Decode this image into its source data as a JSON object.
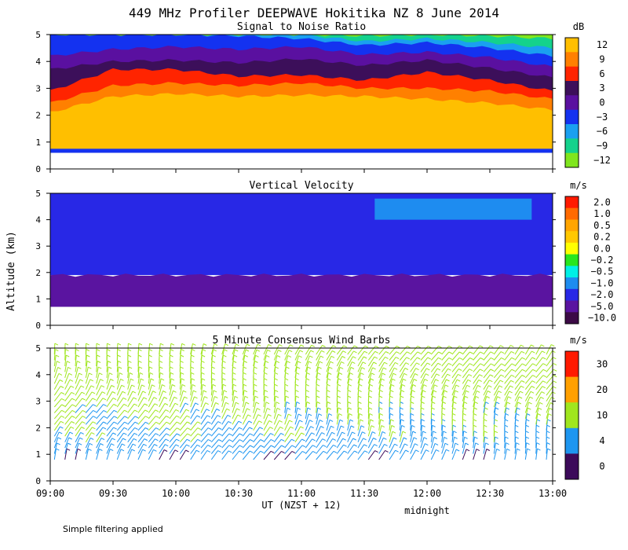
{
  "figure": {
    "title": "449 MHz Profiler DEEPWAVE Hokitika NZ  8 June 2014",
    "ylabel": "Altitude (km)",
    "xlabel": "UT  (NZST + 12)",
    "midnight_label": "midnight",
    "footnote": "Simple filtering applied",
    "x_ticks": [
      "09:00",
      "09:30",
      "10:00",
      "10:30",
      "11:00",
      "11:30",
      "12:00",
      "12:30",
      "13:00"
    ]
  },
  "chart_data": [
    {
      "type": "heatmap",
      "title": "Signal to Noise Ratio",
      "colorbar_unit": "dB",
      "x_range": [
        "09:00",
        "13:00"
      ],
      "ylim": [
        0,
        5
      ],
      "y_ticks": [
        0,
        1,
        2,
        3,
        4,
        5
      ],
      "color_levels": [
        {
          "label": "12",
          "color": "#FFBF00"
        },
        {
          "label": "9",
          "color": "#FF8000"
        },
        {
          "label": "6",
          "color": "#FF2400"
        },
        {
          "label": "3",
          "color": "#3C0F5A"
        },
        {
          "label": "0",
          "color": "#5A10A0"
        },
        {
          "label": "−3",
          "color": "#1432F0"
        },
        {
          "label": "−6",
          "color": "#1AA0F0"
        },
        {
          "label": "−9",
          "color": "#14D28C"
        },
        {
          "label": "−12",
          "color": "#80E61E"
        }
      ],
      "layer_tops_km": {
        "x": [
          "09:00",
          "09:30",
          "10:00",
          "10:30",
          "11:00",
          "11:30",
          "12:00",
          "12:30",
          "13:00"
        ],
        "12": [
          2.1,
          2.7,
          2.8,
          2.7,
          2.75,
          2.7,
          2.6,
          2.45,
          2.2
        ],
        "9": [
          2.45,
          3.1,
          3.2,
          3.1,
          3.2,
          3.0,
          3.0,
          2.9,
          2.6
        ],
        "6": [
          2.9,
          3.7,
          3.7,
          3.45,
          3.5,
          3.3,
          3.6,
          3.3,
          2.9
        ],
        "3": [
          3.7,
          4.0,
          4.05,
          3.95,
          4.1,
          3.85,
          4.05,
          3.75,
          3.4
        ],
        "0": [
          4.2,
          4.45,
          4.55,
          4.45,
          4.55,
          4.25,
          4.35,
          4.15,
          3.8
        ],
        "-3": [
          5.0,
          5.0,
          5.0,
          4.95,
          4.85,
          4.6,
          4.7,
          4.5,
          4.2
        ],
        "-6": [
          5.0,
          5.0,
          5.0,
          5.0,
          5.0,
          4.75,
          4.85,
          4.7,
          4.5
        ],
        "-9": [
          5.0,
          5.0,
          5.0,
          5.0,
          5.0,
          4.95,
          5.0,
          4.95,
          4.85
        ]
      },
      "bottom_km": 0.6
    },
    {
      "type": "heatmap",
      "title": "Vertical Velocity",
      "colorbar_unit": "m/s",
      "x_range": [
        "09:00",
        "13:00"
      ],
      "ylim": [
        0,
        5
      ],
      "y_ticks": [
        0,
        1,
        2,
        3,
        4,
        5
      ],
      "color_levels": [
        {
          "label": "2.0",
          "color": "#FF1A00"
        },
        {
          "label": "1.0",
          "color": "#FF6A00"
        },
        {
          "label": "0.5",
          "color": "#FFA500"
        },
        {
          "label": "0.2",
          "color": "#FFC800"
        },
        {
          "label": "0.0",
          "color": "#FFFF00"
        },
        {
          "label": "−0.2",
          "color": "#28E61E"
        },
        {
          "label": "−0.5",
          "color": "#00F0E6"
        },
        {
          "label": "−1.0",
          "color": "#1E8CF0"
        },
        {
          "label": "−2.0",
          "color": "#2828E6"
        },
        {
          "label": "−5.0",
          "color": "#5A14A0"
        },
        {
          "label": "−10.0",
          "color": "#3C0A46"
        }
      ],
      "regions": [
        {
          "value": "−5.0",
          "from_km": 0.7,
          "to_km": 1.9,
          "x": [
            "09:00",
            "13:00"
          ]
        },
        {
          "value": "−2.0",
          "from_km": 1.9,
          "to_km": 5.0,
          "x": [
            "09:00",
            "13:00"
          ]
        },
        {
          "value": "−1.0",
          "from_km": 4.0,
          "to_km": 4.8,
          "x": [
            "11:35",
            "12:50"
          ]
        }
      ]
    },
    {
      "type": "scatter",
      "title": "5 Minute Consensus Wind Barbs",
      "colorbar_unit": "m/s",
      "x_range": [
        "09:00",
        "13:00"
      ],
      "ylim": [
        0,
        5
      ],
      "y_ticks": [
        0,
        1,
        2,
        3,
        4,
        5
      ],
      "color_levels": [
        {
          "label": "30",
          "color": "#FF1A00"
        },
        {
          "label": "20",
          "color": "#FFA000"
        },
        {
          "label": "10",
          "color": "#A0E61E"
        },
        {
          "label": "4",
          "color": "#1E96F0"
        },
        {
          "label": "0",
          "color": "#3C0A5A"
        }
      ],
      "speed_profile": [
        {
          "altitude_km": 0.8,
          "speed_ms": 3
        },
        {
          "altitude_km": 1.5,
          "speed_ms": 6
        },
        {
          "altitude_km": 2.5,
          "speed_ms": 8
        },
        {
          "altitude_km": 3.5,
          "speed_ms": 10
        },
        {
          "altitude_km": 4.8,
          "speed_ms": 12
        }
      ]
    }
  ]
}
